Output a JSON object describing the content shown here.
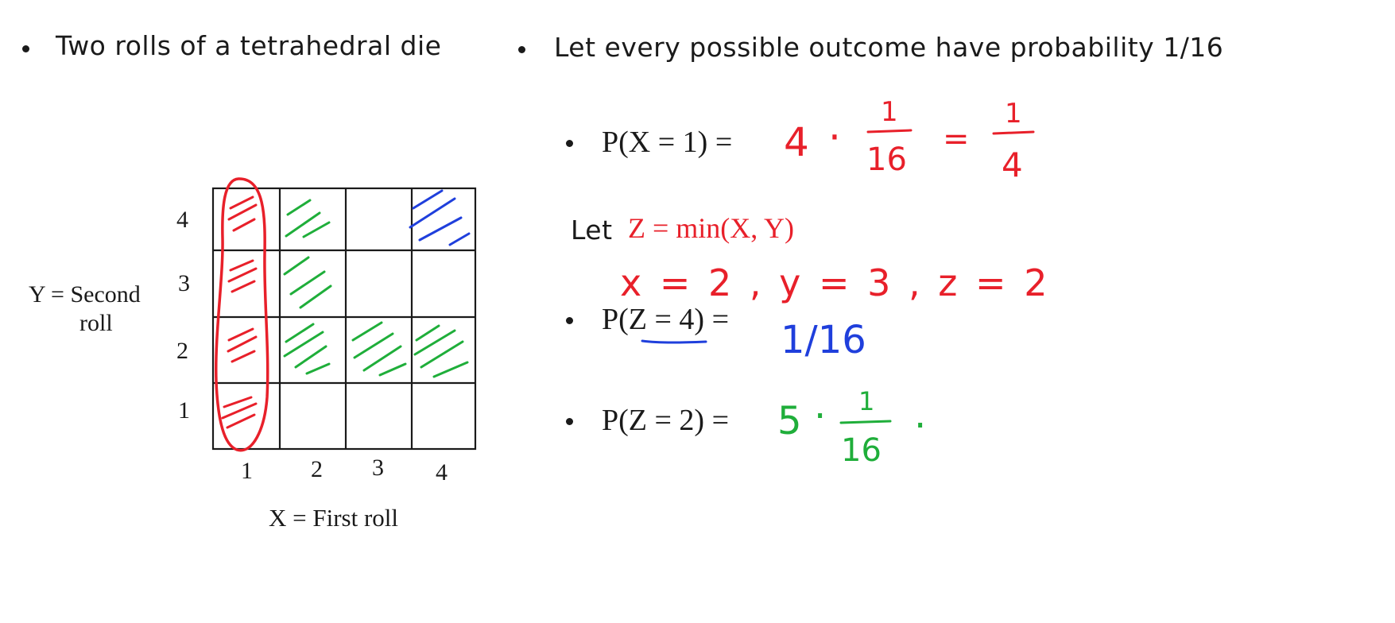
{
  "bullets": {
    "left": "Two rolls of a tetrahedral die",
    "right": "Let every possible outcome have probability 1/16"
  },
  "grid": {
    "y_axis_label_line1": "Y = Second",
    "y_axis_label_line2": "roll",
    "x_axis_label": "X = First roll",
    "x_ticks": [
      "1",
      "2",
      "3",
      "4"
    ],
    "y_ticks": [
      "4",
      "3",
      "2",
      "1"
    ]
  },
  "formulas": {
    "p_x1_lhs": "P(X = 1) =",
    "let_word": "Let",
    "z_def": "Z = min(X, Y)",
    "p_z4_lhs": "P(Z = 4) =",
    "p_z2_lhs": "P(Z = 2) ="
  },
  "handwriting": {
    "x1_factor": "4",
    "x1_dot": "·",
    "x1_num": "1",
    "x1_den": "16",
    "x1_eq": "=",
    "x1_result_num": "1",
    "x1_result_den": "4",
    "example": "x = 2 , y = 3 , z = 2",
    "z4_answer": "1/16",
    "z2_factor": "5",
    "z2_dot": "·",
    "z2_num": "1",
    "z2_den": "16",
    "z2_trailing_dot": "·"
  },
  "colors": {
    "red": "#e8202a",
    "green": "#1fae3a",
    "blue": "#1f3fdc",
    "ink": "#1a1a1a"
  }
}
